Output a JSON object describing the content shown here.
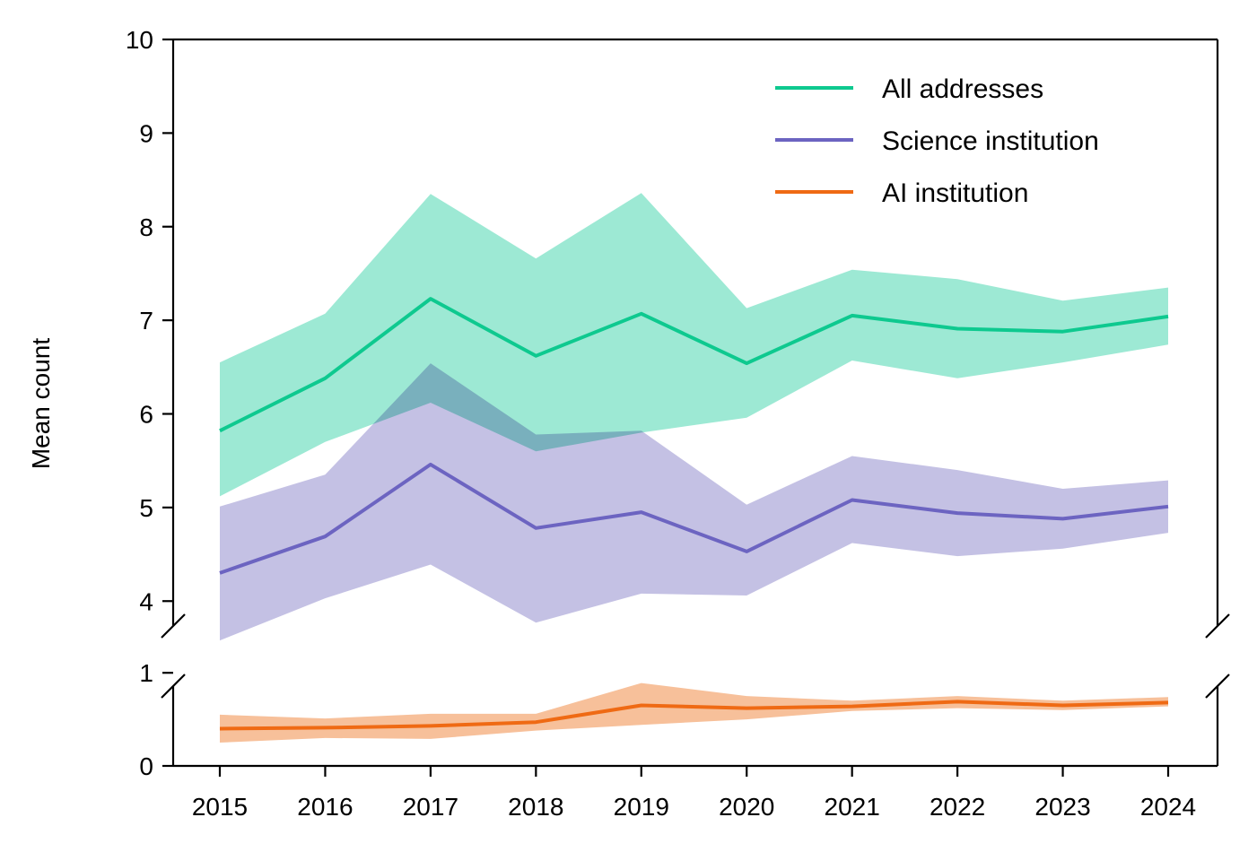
{
  "chart_data": {
    "type": "line",
    "ylabel": "Mean count",
    "xlabel": "",
    "x": [
      2015,
      2016,
      2017,
      2018,
      2019,
      2020,
      2021,
      2022,
      2023,
      2024
    ],
    "xtick_labels": [
      "2015",
      "2016",
      "2017",
      "2018",
      "2019",
      "2020",
      "2021",
      "2022",
      "2023",
      "2024"
    ],
    "y_axis_break": true,
    "upper_panel": {
      "ylim": [
        3.6,
        10
      ],
      "yticks": [
        4,
        5,
        6,
        7,
        8,
        9,
        10
      ],
      "ytick_labels": [
        "4",
        "5",
        "6",
        "7",
        "8",
        "9",
        "10"
      ]
    },
    "lower_panel": {
      "ylim": [
        0,
        1.05
      ],
      "yticks": [
        0,
        1
      ],
      "ytick_labels": [
        "0",
        "1"
      ]
    },
    "legend_position": "top-right",
    "series": [
      {
        "name": "All addresses",
        "panel": "upper",
        "color": "#0ec98f",
        "band_color": "#9de9d4",
        "values": [
          5.82,
          6.38,
          7.23,
          6.62,
          7.07,
          6.54,
          7.05,
          6.91,
          6.88,
          7.04
        ],
        "lower": [
          5.12,
          5.7,
          6.12,
          5.6,
          5.8,
          5.96,
          6.57,
          6.38,
          6.55,
          6.74
        ],
        "upper": [
          6.55,
          7.07,
          8.35,
          7.66,
          8.36,
          7.13,
          7.54,
          7.44,
          7.21,
          7.35
        ]
      },
      {
        "name": "Science institution",
        "panel": "upper",
        "color": "#6c64c1",
        "band_color": "#c4c1e4",
        "values": [
          4.3,
          4.69,
          5.46,
          4.78,
          4.95,
          4.53,
          5.08,
          4.94,
          4.88,
          5.01
        ],
        "lower": [
          3.58,
          4.03,
          4.39,
          3.77,
          4.08,
          4.06,
          4.62,
          4.48,
          4.56,
          4.73
        ],
        "upper": [
          5.01,
          5.35,
          6.54,
          5.78,
          5.82,
          5.03,
          5.55,
          5.4,
          5.2,
          5.29
        ]
      },
      {
        "name": "AI institution",
        "panel": "lower",
        "color": "#ef6a14",
        "band_color": "#f7c09a",
        "values": [
          0.4,
          0.41,
          0.43,
          0.47,
          0.65,
          0.62,
          0.64,
          0.69,
          0.65,
          0.68
        ],
        "lower": [
          0.25,
          0.3,
          0.29,
          0.38,
          0.44,
          0.5,
          0.59,
          0.62,
          0.6,
          0.64
        ],
        "upper": [
          0.55,
          0.51,
          0.56,
          0.56,
          0.89,
          0.75,
          0.7,
          0.75,
          0.7,
          0.74
        ]
      }
    ]
  }
}
